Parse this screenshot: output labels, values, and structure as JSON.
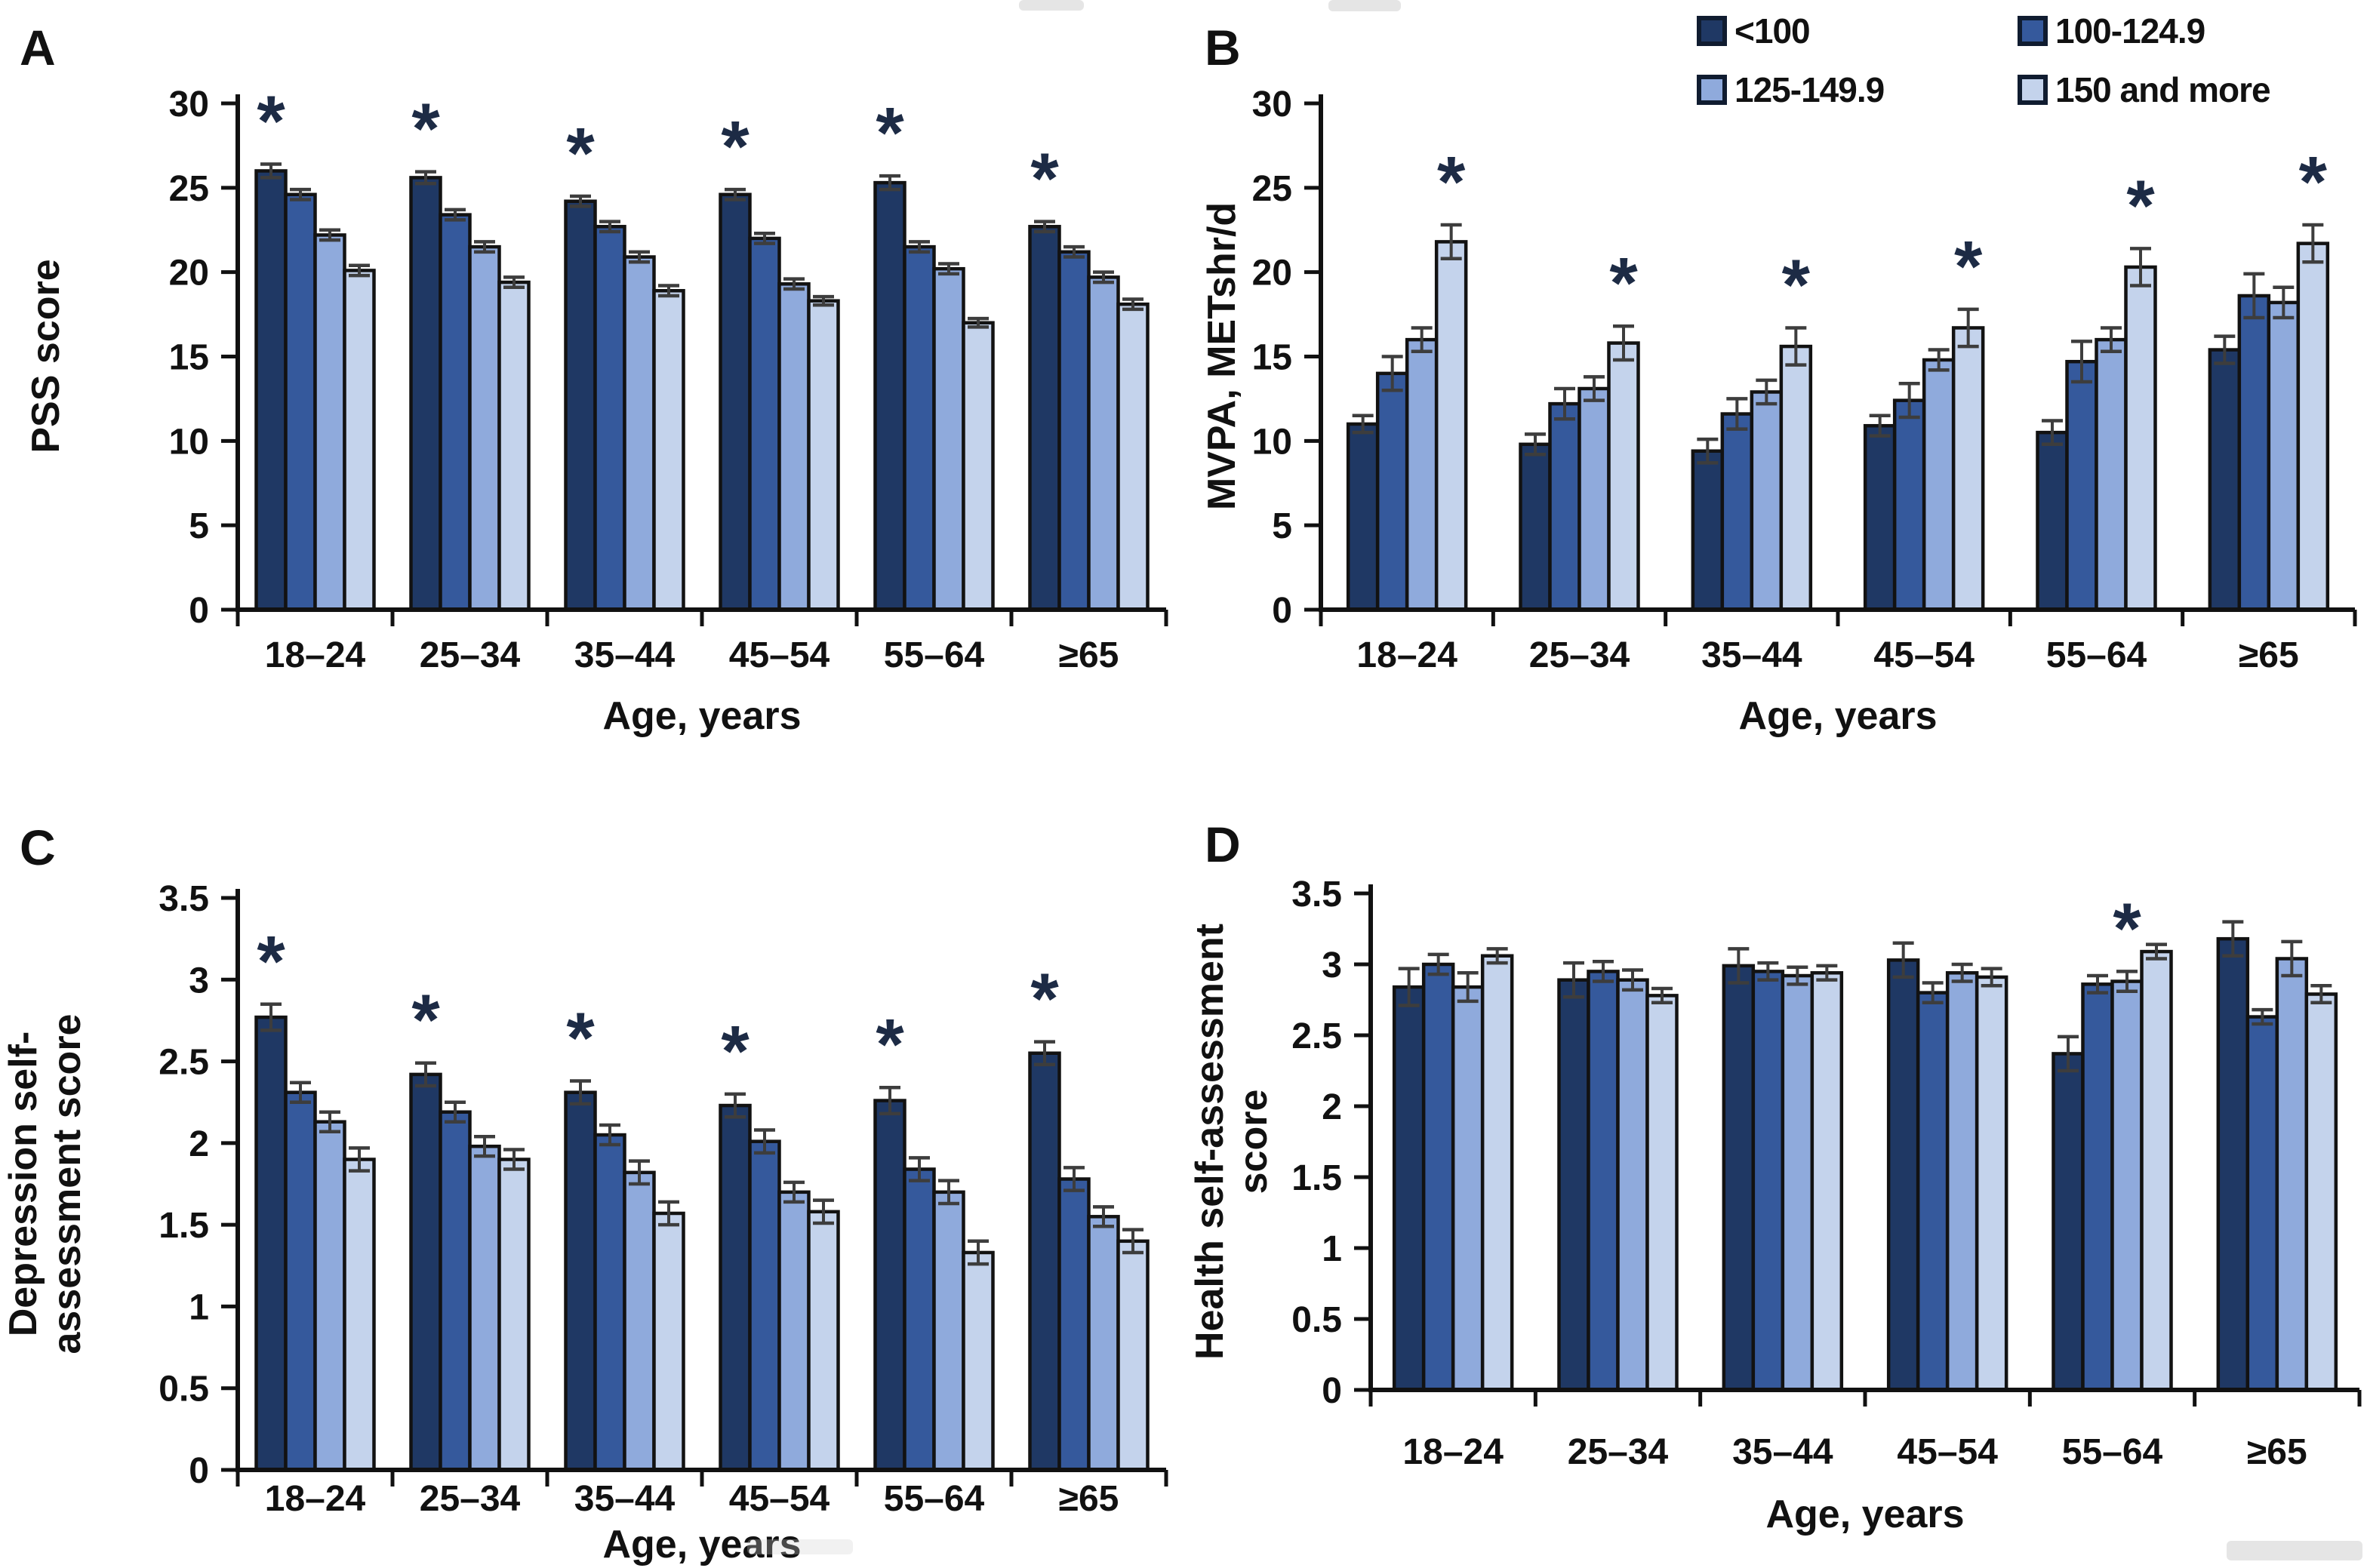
{
  "figure": {
    "colors": {
      "bar_border": "#121212",
      "error_bar": "#3d3d3d",
      "asterisk": "#1d2b45",
      "axis": "#111111",
      "text": "#111111",
      "series": [
        "#1f3864",
        "#35599c",
        "#8faadc",
        "#c4d3ec"
      ]
    },
    "legend": {
      "items": [
        {
          "label": "<100",
          "color": "#1f3864"
        },
        {
          "label": "100-124.9",
          "color": "#35599c"
        },
        {
          "label": "125-149.9",
          "color": "#8faadc"
        },
        {
          "label": "150 and more",
          "color": "#c4d3ec"
        }
      ]
    }
  },
  "chart_data": [
    {
      "type": "bar",
      "panel_label": "A",
      "ylabel_lines": [
        "PSS score"
      ],
      "xlabel": "Age, years",
      "categories": [
        "18–24",
        "25–34",
        "35–44",
        "45–54",
        "55–64",
        "≥65"
      ],
      "ylim": [
        0,
        30
      ],
      "yticks": [
        "0",
        "5",
        "10",
        "15",
        "20",
        "25",
        "30"
      ],
      "grid": false,
      "series": [
        {
          "name": "<100",
          "values": [
            26.0,
            25.6,
            24.2,
            24.6,
            25.3,
            22.7
          ],
          "errors": [
            0.4,
            0.35,
            0.3,
            0.3,
            0.4,
            0.3
          ]
        },
        {
          "name": "100-124.9",
          "values": [
            24.6,
            23.4,
            22.7,
            22.0,
            21.5,
            21.2
          ],
          "errors": [
            0.3,
            0.3,
            0.3,
            0.3,
            0.3,
            0.3
          ]
        },
        {
          "name": "125-149.9",
          "values": [
            22.2,
            21.5,
            20.9,
            19.3,
            20.2,
            19.7
          ],
          "errors": [
            0.3,
            0.3,
            0.3,
            0.3,
            0.3,
            0.3
          ]
        },
        {
          "name": "150 and more",
          "values": [
            20.1,
            19.4,
            18.9,
            18.3,
            17.0,
            18.1
          ],
          "errors": [
            0.3,
            0.3,
            0.3,
            0.25,
            0.25,
            0.3
          ]
        }
      ],
      "asterisks": [
        [
          0,
          0
        ],
        [
          1,
          0
        ],
        [
          2,
          0
        ],
        [
          3,
          0
        ],
        [
          4,
          0
        ],
        [
          5,
          0
        ]
      ]
    },
    {
      "type": "bar",
      "panel_label": "B",
      "ylabel_lines": [
        "MVPA, METshr/d"
      ],
      "xlabel": "Age, years",
      "categories": [
        "18–24",
        "25–34",
        "35–44",
        "45–54",
        "55–64",
        "≥65"
      ],
      "ylim": [
        0,
        30
      ],
      "yticks": [
        "0",
        "5",
        "10",
        "15",
        "20",
        "25",
        "30"
      ],
      "grid": false,
      "series": [
        {
          "name": "<100",
          "values": [
            11.0,
            9.8,
            9.4,
            10.9,
            10.5,
            15.4
          ],
          "errors": [
            0.5,
            0.6,
            0.7,
            0.6,
            0.7,
            0.8
          ]
        },
        {
          "name": "100-124.9",
          "values": [
            14.0,
            12.2,
            11.6,
            12.4,
            14.7,
            18.6
          ],
          "errors": [
            1.0,
            0.9,
            0.9,
            1.0,
            1.2,
            1.3
          ]
        },
        {
          "name": "125-149.9",
          "values": [
            16.0,
            13.1,
            12.9,
            14.8,
            16.0,
            18.2
          ],
          "errors": [
            0.7,
            0.7,
            0.7,
            0.6,
            0.7,
            0.9
          ]
        },
        {
          "name": "150 and more",
          "values": [
            21.8,
            15.8,
            15.6,
            16.7,
            20.3,
            21.7
          ],
          "errors": [
            1.0,
            1.0,
            1.1,
            1.1,
            1.1,
            1.1
          ]
        }
      ],
      "asterisks": [
        [
          0,
          3
        ],
        [
          1,
          3
        ],
        [
          2,
          3
        ],
        [
          3,
          3
        ],
        [
          4,
          3
        ],
        [
          5,
          3
        ]
      ]
    },
    {
      "type": "bar",
      "panel_label": "C",
      "ylabel_lines": [
        "Depression self-",
        "assessment score"
      ],
      "xlabel": "Age, years",
      "categories": [
        "18–24",
        "25–34",
        "35–44",
        "45–54",
        "55–64",
        "≥65"
      ],
      "ylim": [
        0,
        3.5
      ],
      "yticks": [
        "0",
        "0.5",
        "1",
        "1.5",
        "2",
        "2.5",
        "3",
        "3.5"
      ],
      "grid": false,
      "series": [
        {
          "name": "<100",
          "values": [
            2.77,
            2.42,
            2.31,
            2.23,
            2.26,
            2.55
          ],
          "errors": [
            0.08,
            0.07,
            0.07,
            0.07,
            0.08,
            0.07
          ]
        },
        {
          "name": "100-124.9",
          "values": [
            2.31,
            2.19,
            2.05,
            2.01,
            1.84,
            1.78
          ],
          "errors": [
            0.06,
            0.06,
            0.06,
            0.07,
            0.07,
            0.07
          ]
        },
        {
          "name": "125-149.9",
          "values": [
            2.13,
            1.98,
            1.82,
            1.7,
            1.7,
            1.55
          ],
          "errors": [
            0.06,
            0.06,
            0.07,
            0.06,
            0.07,
            0.06
          ]
        },
        {
          "name": "150 and more",
          "values": [
            1.9,
            1.9,
            1.57,
            1.58,
            1.33,
            1.4
          ],
          "errors": [
            0.07,
            0.06,
            0.07,
            0.07,
            0.07,
            0.07
          ]
        }
      ],
      "asterisks": [
        [
          0,
          0
        ],
        [
          1,
          0
        ],
        [
          2,
          0
        ],
        [
          3,
          0
        ],
        [
          4,
          0
        ],
        [
          5,
          0
        ]
      ]
    },
    {
      "type": "bar",
      "panel_label": "D",
      "ylabel_lines": [
        "Health self-assessment",
        "score"
      ],
      "xlabel": "Age, years",
      "categories": [
        "18–24",
        "25–34",
        "35–44",
        "45–54",
        "55–64",
        "≥65"
      ],
      "ylim": [
        0,
        3.5
      ],
      "yticks": [
        "0",
        "0.5",
        "1",
        "1.5",
        "2",
        "2.5",
        "3",
        "3.5"
      ],
      "grid": false,
      "series": [
        {
          "name": "<100",
          "values": [
            2.84,
            2.89,
            2.99,
            3.03,
            2.37,
            3.18
          ],
          "errors": [
            0.13,
            0.12,
            0.12,
            0.12,
            0.12,
            0.12
          ]
        },
        {
          "name": "100-124.9",
          "values": [
            3.0,
            2.95,
            2.95,
            2.8,
            2.86,
            2.63
          ],
          "errors": [
            0.07,
            0.07,
            0.06,
            0.07,
            0.06,
            0.05
          ]
        },
        {
          "name": "125-149.9",
          "values": [
            2.84,
            2.89,
            2.92,
            2.94,
            2.88,
            3.04
          ],
          "errors": [
            0.1,
            0.07,
            0.06,
            0.06,
            0.07,
            0.12
          ]
        },
        {
          "name": "150 and more",
          "values": [
            3.06,
            2.78,
            2.94,
            2.91,
            3.09,
            2.79
          ],
          "errors": [
            0.05,
            0.05,
            0.05,
            0.06,
            0.05,
            0.06
          ]
        }
      ],
      "asterisks": [
        [
          4,
          2
        ]
      ]
    }
  ]
}
